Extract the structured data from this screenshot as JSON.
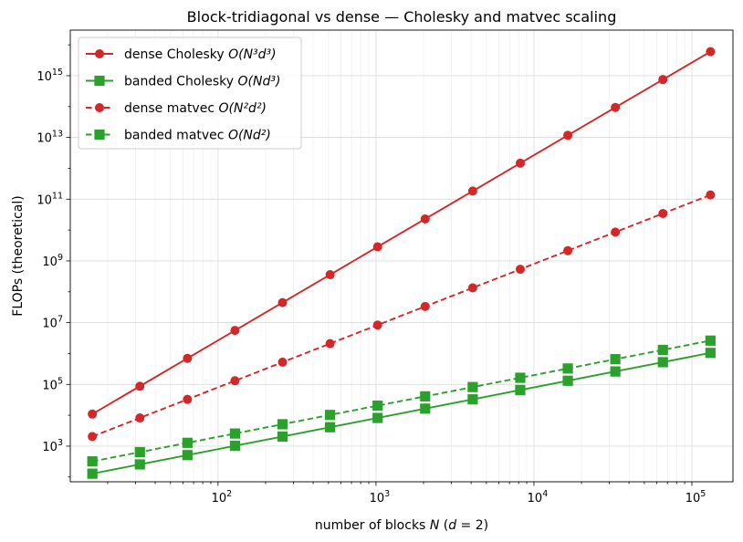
{
  "chart_data": {
    "type": "line",
    "title": "Block-tridiagonal vs dense — Cholesky and matvec scaling",
    "xlabel": "number of blocks N  (d = 2)",
    "ylabel": "FLOPs (theoretical)",
    "xscale": "log",
    "yscale": "log",
    "xlim": [
      11.6,
      182000
    ],
    "ylim": [
      70.0,
      3e+16
    ],
    "grid": true,
    "legend_position": "top-left",
    "x": [
      16,
      32,
      64,
      128,
      256,
      512,
      1024,
      2048,
      4096,
      8192,
      16384,
      32768,
      65536,
      131072
    ],
    "x_ticks": [
      {
        "value": 100,
        "base": "10",
        "exp": "2"
      },
      {
        "value": 1000,
        "base": "10",
        "exp": "3"
      },
      {
        "value": 10000,
        "base": "10",
        "exp": "4"
      },
      {
        "value": 100000,
        "base": "10",
        "exp": "5"
      }
    ],
    "y_ticks": [
      {
        "value": 1000.0,
        "base": "10",
        "exp": "3"
      },
      {
        "value": 100000.0,
        "base": "10",
        "exp": "5"
      },
      {
        "value": 10000000.0,
        "base": "10",
        "exp": "7"
      },
      {
        "value": 1000000000.0,
        "base": "10",
        "exp": "9"
      },
      {
        "value": 100000000000.0,
        "base": "10",
        "exp": "11"
      },
      {
        "value": 10000000000000.0,
        "base": "10",
        "exp": "13"
      },
      {
        "value": 1000000000000000.0,
        "base": "10",
        "exp": "15"
      }
    ],
    "series": [
      {
        "name": "dense Cholesky O(N³d³)",
        "legend_main": "dense Cholesky ",
        "legend_math": "O(N³d³)",
        "color": "#d62728",
        "linestyle": "solid",
        "marker": "circle",
        "values": [
          10923,
          87381,
          699051,
          5592405,
          44739243,
          357913941,
          2863311531,
          22906492245,
          183251937963,
          1466015503701,
          11728124029611,
          93824992236885,
          750599937895083,
          6004799503160661
        ]
      },
      {
        "name": "banded Cholesky O(Nd³)",
        "legend_main": "banded Cholesky ",
        "legend_math": "O(Nd³)",
        "color": "#2ca02c",
        "linestyle": "solid",
        "marker": "square",
        "values": [
          128,
          256,
          512,
          1024,
          2048,
          4096,
          8192,
          16384,
          32768,
          65536,
          131072,
          262144,
          524288,
          1048576
        ]
      },
      {
        "name": "dense matvec O(N²d²)",
        "legend_main": "dense matvec ",
        "legend_math": "O(N²d²)",
        "color": "#d62728",
        "linestyle": "dashed",
        "marker": "circle",
        "values": [
          2048,
          8192,
          32768,
          131072,
          524288,
          2097152,
          8388608,
          33554432,
          134217728,
          536870912,
          2147483648,
          8589934592,
          34359738368,
          137438953472
        ]
      },
      {
        "name": "banded matvec O(Nd²)",
        "legend_main": "banded matvec ",
        "legend_math": "O(Nd²)",
        "color": "#2ca02c",
        "linestyle": "dashed",
        "marker": "square",
        "values": [
          320,
          640,
          1280,
          2560,
          5120,
          10240,
          20480,
          40960,
          81920,
          163840,
          327680,
          655360,
          1310720,
          2621440
        ]
      }
    ]
  }
}
